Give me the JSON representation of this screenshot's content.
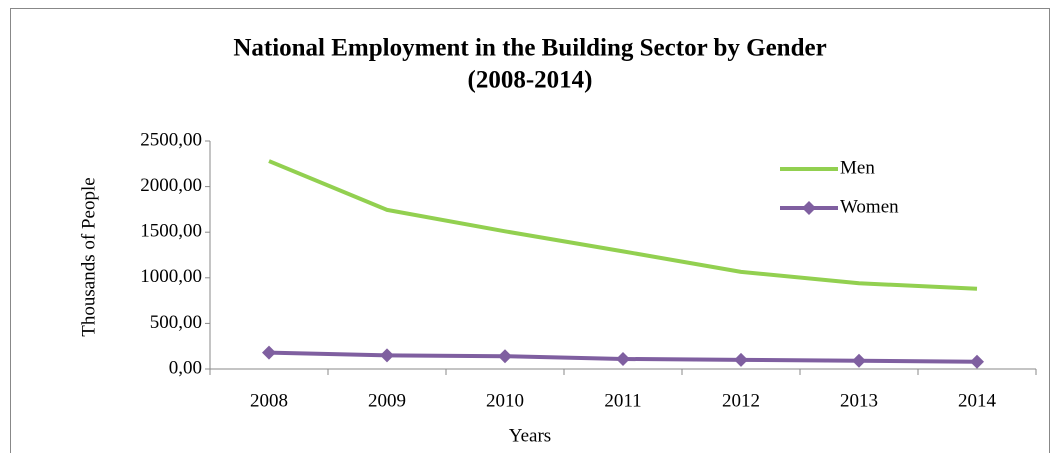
{
  "chart_data": {
    "type": "line",
    "title": "National Employment in the Building Sector by Gender",
    "subtitle": "(2008-2014)",
    "x_label": "Years",
    "y_label": "Thousands of People",
    "categories": [
      "2008",
      "2009",
      "2010",
      "2011",
      "2012",
      "2013",
      "2014"
    ],
    "series": [
      {
        "name": "Men",
        "color": "#92d050",
        "marker": "none",
        "values": [
          2280,
          1745,
          1510,
          1290,
          1065,
          940,
          880
        ]
      },
      {
        "name": "Women",
        "color": "#7f5fa0",
        "marker": "diamond",
        "values": [
          180,
          150,
          140,
          110,
          100,
          90,
          80
        ]
      }
    ],
    "ylim": [
      0,
      2500
    ],
    "yticks": [
      {
        "value": 0,
        "label": "0,00"
      },
      {
        "value": 500,
        "label": "500,00"
      },
      {
        "value": 1000,
        "label": "1000,00"
      },
      {
        "value": 1500,
        "label": "1500,00"
      },
      {
        "value": 2000,
        "label": "2000,00"
      },
      {
        "value": 2500,
        "label": "2500,00"
      }
    ],
    "grid": false,
    "legend": "upper right"
  }
}
